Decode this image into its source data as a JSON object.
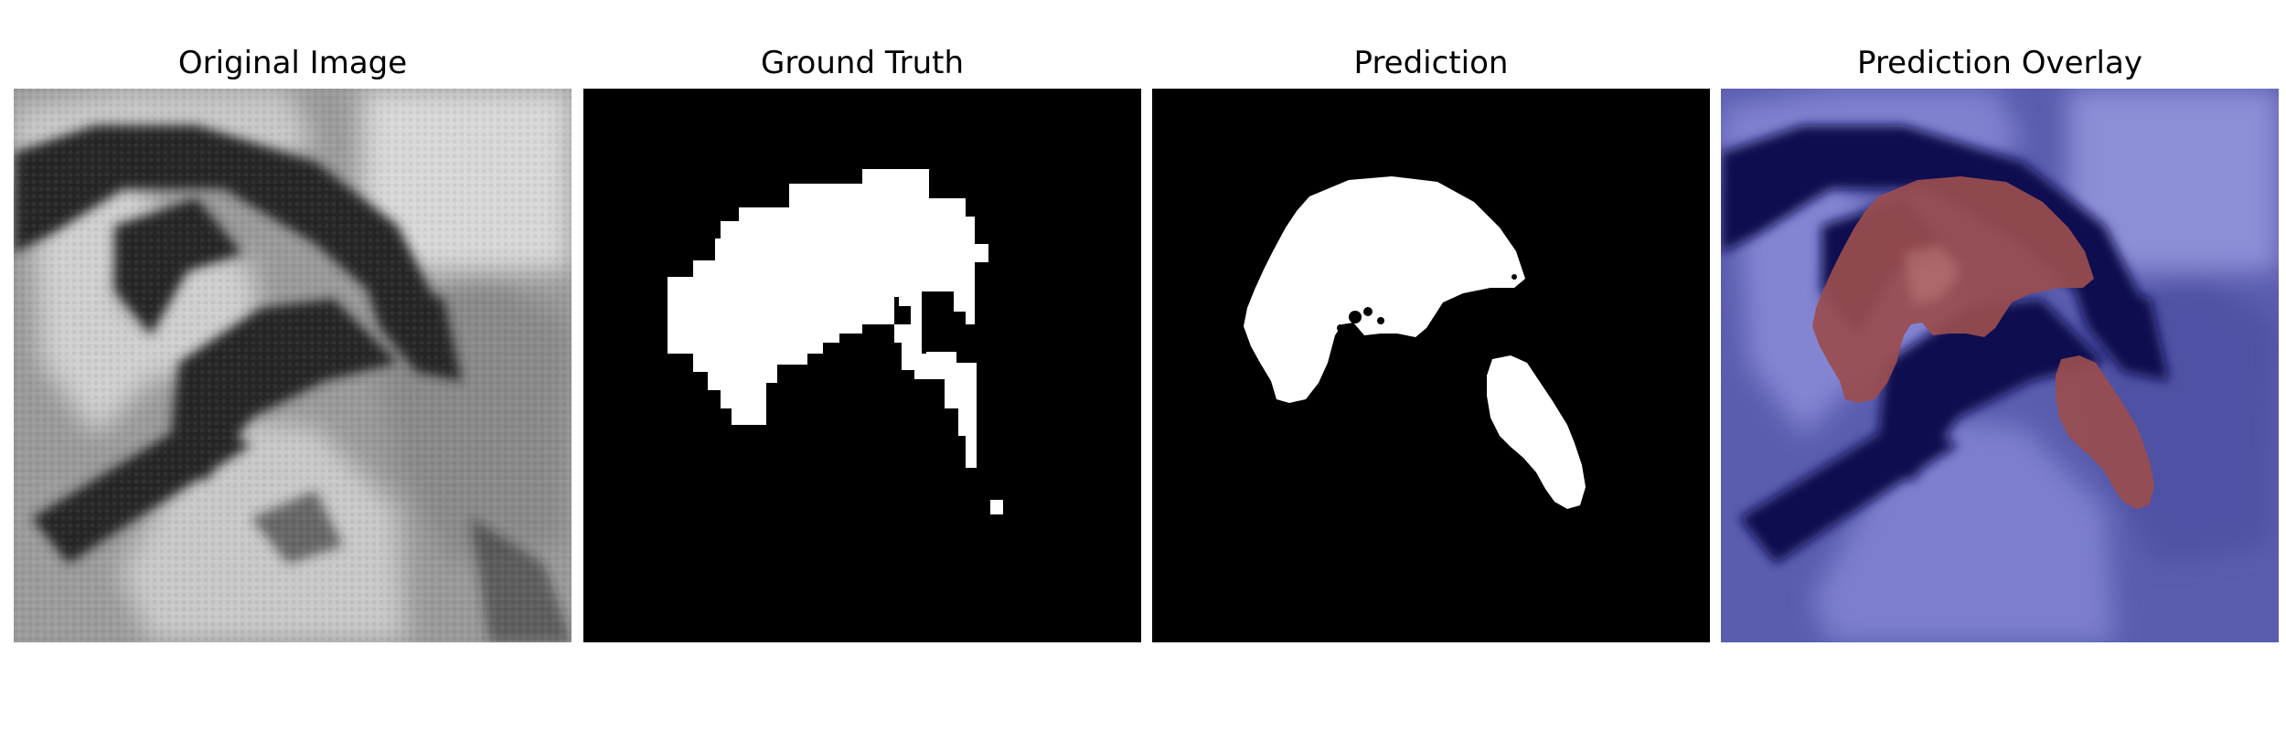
{
  "figure": {
    "panels": [
      {
        "id": "original",
        "title": "Original Image"
      },
      {
        "id": "ground_truth",
        "title": "Ground Truth"
      },
      {
        "id": "prediction",
        "title": "Prediction"
      },
      {
        "id": "overlay",
        "title": "Prediction Overlay"
      }
    ],
    "colors": {
      "background": "#ffffff",
      "mask_background": "#000000",
      "mask_foreground": "#ffffff",
      "overlay_base": "#6c6ec4",
      "overlay_dark": "#0d0b4f",
      "overlay_prediction": "#9a4d4e"
    }
  }
}
